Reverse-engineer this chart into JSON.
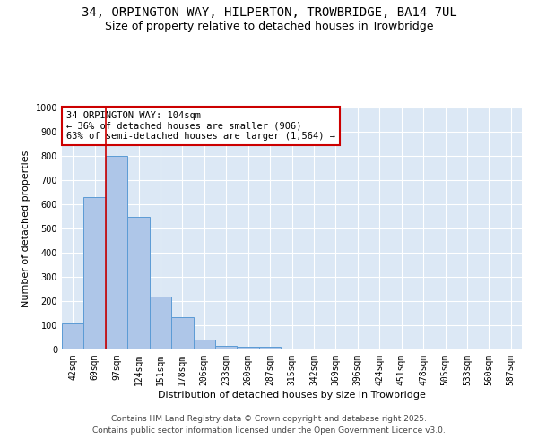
{
  "title_line1": "34, ORPINGTON WAY, HILPERTON, TROWBRIDGE, BA14 7UL",
  "title_line2": "Size of property relative to detached houses in Trowbridge",
  "xlabel": "Distribution of detached houses by size in Trowbridge",
  "ylabel": "Number of detached properties",
  "bar_color": "#aec6e8",
  "bar_edge_color": "#5b9bd5",
  "background_color": "#dce8f5",
  "grid_color": "#ffffff",
  "categories": [
    "42sqm",
    "69sqm",
    "97sqm",
    "124sqm",
    "151sqm",
    "178sqm",
    "206sqm",
    "233sqm",
    "260sqm",
    "287sqm",
    "315sqm",
    "342sqm",
    "369sqm",
    "396sqm",
    "424sqm",
    "451sqm",
    "478sqm",
    "505sqm",
    "533sqm",
    "560sqm",
    "587sqm"
  ],
  "values": [
    108,
    630,
    800,
    548,
    220,
    135,
    42,
    15,
    10,
    10,
    0,
    0,
    0,
    0,
    0,
    0,
    0,
    0,
    0,
    0,
    0
  ],
  "ylim": [
    0,
    1000
  ],
  "yticks": [
    0,
    100,
    200,
    300,
    400,
    500,
    600,
    700,
    800,
    900,
    1000
  ],
  "vline_color": "#cc0000",
  "annotation_text": "34 ORPINGTON WAY: 104sqm\n← 36% of detached houses are smaller (906)\n63% of semi-detached houses are larger (1,564) →",
  "annotation_box_color": "#ffffff",
  "annotation_box_edge": "#cc0000",
  "footer_line1": "Contains HM Land Registry data © Crown copyright and database right 2025.",
  "footer_line2": "Contains public sector information licensed under the Open Government Licence v3.0.",
  "title_fontsize": 10,
  "subtitle_fontsize": 9,
  "axis_label_fontsize": 8,
  "tick_fontsize": 7,
  "annotation_fontsize": 7.5,
  "footer_fontsize": 6.5
}
